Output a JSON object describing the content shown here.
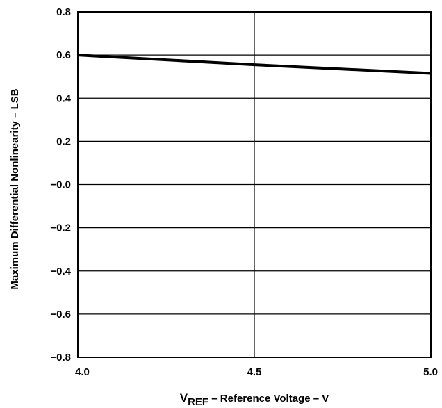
{
  "chart_data": {
    "type": "line",
    "title": "",
    "ylabel": "Maximum Differential Nonlinearity – LSB",
    "xlabel": {
      "prefix": "V",
      "subscript": "REF",
      "suffix": " – Reference Voltage – V"
    },
    "x_ticks": [
      4.0,
      4.5,
      5.0
    ],
    "x_tick_labels": [
      "4.0",
      "4.5",
      "5.0"
    ],
    "y_ticks": [
      -0.8,
      -0.6,
      -0.4,
      -0.2,
      0.0,
      0.2,
      0.4,
      0.6,
      0.8
    ],
    "y_tick_labels": [
      "−0.8",
      "−0.6",
      "−0.4",
      "−0.2",
      "−0.0",
      "0.2",
      "0.4",
      "0.6",
      "0.8"
    ],
    "xlim": [
      4.0,
      5.0
    ],
    "ylim": [
      -0.8,
      0.8
    ],
    "grid": true,
    "series": [
      {
        "x": [
          4.0,
          4.5,
          5.0
        ],
        "y": [
          0.6,
          0.555,
          0.515
        ],
        "color": "#000000"
      }
    ]
  }
}
